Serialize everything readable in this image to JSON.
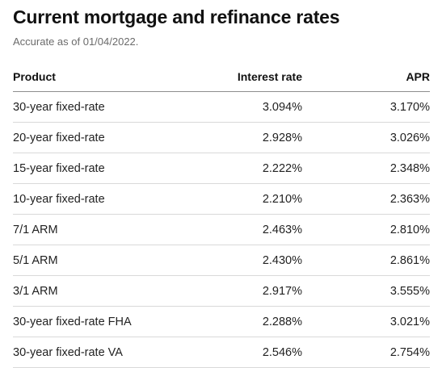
{
  "header": {
    "title": "Current mortgage and refinance rates",
    "subtitle": "Accurate as of 01/04/2022."
  },
  "table": {
    "columns": [
      "Product",
      "Interest rate",
      "APR"
    ],
    "rows": [
      {
        "product": "30-year fixed-rate",
        "interest_rate": "3.094%",
        "apr": "3.170%"
      },
      {
        "product": "20-year fixed-rate",
        "interest_rate": "2.928%",
        "apr": "3.026%"
      },
      {
        "product": "15-year fixed-rate",
        "interest_rate": "2.222%",
        "apr": "2.348%"
      },
      {
        "product": "10-year fixed-rate",
        "interest_rate": "2.210%",
        "apr": "2.363%"
      },
      {
        "product": "7/1 ARM",
        "interest_rate": "2.463%",
        "apr": "2.810%"
      },
      {
        "product": "5/1 ARM",
        "interest_rate": "2.430%",
        "apr": "2.861%"
      },
      {
        "product": "3/1 ARM",
        "interest_rate": "2.917%",
        "apr": "3.555%"
      },
      {
        "product": "30-year fixed-rate FHA",
        "interest_rate": "2.288%",
        "apr": "3.021%"
      },
      {
        "product": "30-year fixed-rate VA",
        "interest_rate": "2.546%",
        "apr": "2.754%"
      }
    ]
  }
}
